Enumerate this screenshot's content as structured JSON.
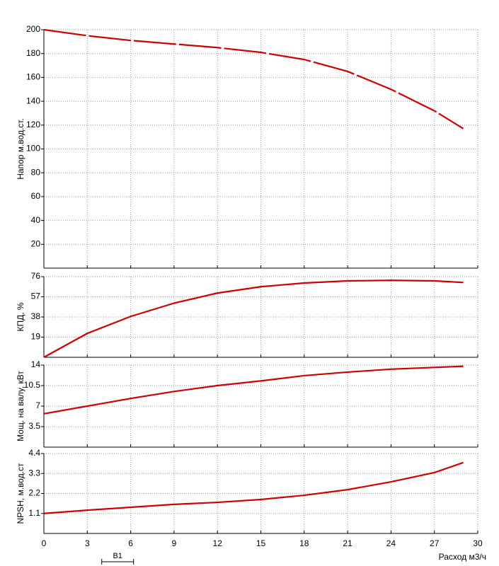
{
  "chart_data": [
    {
      "type": "line",
      "ylabel": "Напор м.вод.ст.",
      "x": [
        0,
        3,
        6,
        9,
        12,
        15,
        18,
        21,
        24,
        27,
        29
      ],
      "series": [
        {
          "color": "#cc0000",
          "dashed": true,
          "values": [
            200,
            195,
            191,
            188,
            185,
            181,
            175,
            165,
            150,
            132,
            117
          ]
        }
      ],
      "xlim": [
        0,
        30
      ],
      "xticks": [
        0,
        3,
        6,
        9,
        12,
        15,
        18,
        21,
        24,
        27,
        30
      ],
      "ylim": [
        0,
        200
      ],
      "yticks": [
        20,
        40,
        60,
        80,
        100,
        120,
        140,
        160,
        180,
        200
      ],
      "grid": true
    },
    {
      "type": "line",
      "ylabel": "КПД, %",
      "x": [
        0,
        3,
        6,
        9,
        12,
        15,
        18,
        21,
        24,
        27,
        29
      ],
      "series": [
        {
          "color": "#cc0000",
          "dashed": false,
          "values": [
            0,
            22.5,
            38.5,
            51,
            60.5,
            66.5,
            70,
            72,
            72.5,
            72,
            70.5
          ]
        }
      ],
      "xlim": [
        0,
        30
      ],
      "xticks": [
        0,
        3,
        6,
        9,
        12,
        15,
        18,
        21,
        24,
        27,
        30
      ],
      "ylim": [
        0,
        76
      ],
      "yticks": [
        19,
        38,
        57,
        76
      ],
      "grid": true
    },
    {
      "type": "line",
      "ylabel": "Мощ. на валу, кВт",
      "x": [
        0,
        3,
        6,
        9,
        12,
        15,
        18,
        21,
        24,
        27,
        29
      ],
      "series": [
        {
          "color": "#cc0000",
          "dashed": false,
          "values": [
            5.7,
            7.0,
            8.3,
            9.5,
            10.5,
            11.3,
            12.2,
            12.8,
            13.3,
            13.6,
            13.8
          ]
        }
      ],
      "xlim": [
        0,
        30
      ],
      "xticks": [
        0,
        3,
        6,
        9,
        12,
        15,
        18,
        21,
        24,
        27,
        30
      ],
      "ylim": [
        0,
        14
      ],
      "yticks": [
        3.5,
        7,
        10.5,
        14
      ],
      "grid": true
    },
    {
      "type": "line",
      "ylabel": "NPSH, м.вод.ст",
      "xlabel": "Расход м3/ч",
      "x": [
        0,
        3,
        6,
        9,
        12,
        15,
        18,
        21,
        24,
        27,
        29
      ],
      "series": [
        {
          "color": "#cc0000",
          "dashed": false,
          "values": [
            1.1,
            1.28,
            1.44,
            1.6,
            1.71,
            1.87,
            2.1,
            2.41,
            2.84,
            3.35,
            3.9
          ]
        }
      ],
      "xlim": [
        0,
        30
      ],
      "xticks": [
        0,
        3,
        6,
        9,
        12,
        15,
        18,
        21,
        24,
        27,
        30
      ],
      "ylim": [
        0,
        4.4
      ],
      "yticks": [
        1.1,
        2.2,
        3.3,
        4.4
      ],
      "grid": true,
      "range_marker": {
        "label": "В1",
        "x": [
          4,
          6.2
        ]
      }
    }
  ]
}
